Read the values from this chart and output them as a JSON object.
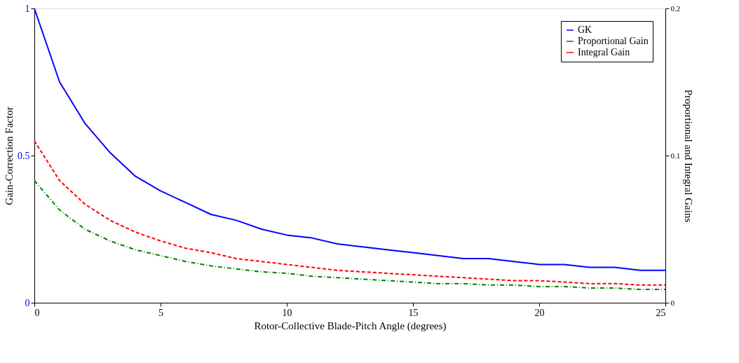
{
  "chart_data": {
    "type": "line",
    "xlabel": "Rotor-Collective Blade-Pitch Angle (degrees)",
    "ylabel": "Gain-Correction Factor",
    "y2label": "Proportional and Integral Gains",
    "x": [
      0,
      1,
      2,
      3,
      4,
      5,
      6,
      7,
      8,
      9,
      10,
      11,
      12,
      13,
      14,
      15,
      16,
      17,
      18,
      19,
      20,
      21,
      22,
      23,
      24,
      25
    ],
    "series": [
      {
        "name": "GK",
        "color": "#0000ff",
        "line_style": "solid",
        "values": [
          1,
          0.75,
          0.61,
          0.51,
          0.43,
          0.38,
          0.34,
          0.3,
          0.28,
          0.25,
          0.23,
          0.22,
          0.2,
          0.19,
          0.18,
          0.17,
          0.16,
          0.15,
          0.15,
          0.14,
          0.13,
          0.13,
          0.12,
          0.12,
          0.11,
          0.11
        ]
      },
      {
        "name": "Proportional Gain",
        "color": "#008000",
        "line_style": "dashdot",
        "axis": "y2",
        "values": [
          0.083,
          0.063,
          0.05,
          0.042,
          0.036,
          0.032,
          0.028,
          0.025,
          0.023,
          0.021,
          0.02,
          0.018,
          0.017,
          0.016,
          0.015,
          0.014,
          0.013,
          0.013,
          0.012,
          0.012,
          0.011,
          0.011,
          0.01,
          0.01,
          0.009,
          0.009
        ]
      },
      {
        "name": "Integral Gain",
        "color": "#ff0000",
        "line_style": "dashed",
        "axis": "y2",
        "values": [
          0.11,
          0.083,
          0.067,
          0.056,
          0.048,
          0.042,
          0.037,
          0.034,
          0.03,
          0.028,
          0.026,
          0.024,
          0.022,
          0.021,
          0.02,
          0.019,
          0.018,
          0.017,
          0.016,
          0.015,
          0.015,
          0.014,
          0.013,
          0.013,
          0.012,
          0.012
        ]
      }
    ],
    "xlim": [
      0,
      25
    ],
    "xticks": [
      0,
      5,
      10,
      15,
      20,
      25
    ],
    "ylim": [
      0,
      1
    ],
    "yticks": [
      0,
      0.5,
      1
    ],
    "y2lim": [
      0,
      0.2
    ],
    "y2ticks": [
      0,
      0.1,
      0.2
    ],
    "grid": false,
    "legend": "top right"
  }
}
